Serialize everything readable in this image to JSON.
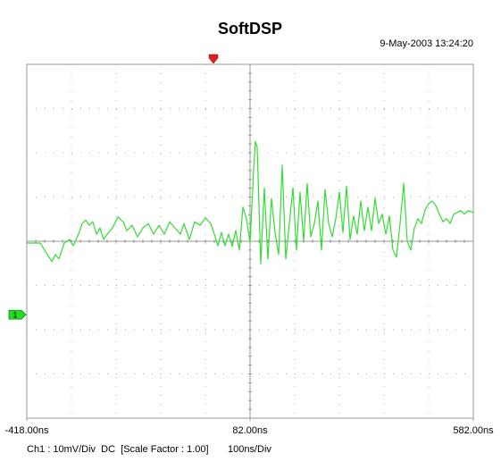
{
  "chart_data": {
    "type": "line",
    "title": "SoftDSP",
    "timestamp": "9-May-2003 13:24:20",
    "channel_info": "Ch1 : 10mV/Div  DC  [Scale Factor : 1.00]",
    "timebase": "100ns/Div",
    "color": "#33dd33",
    "xlim": [
      -418,
      582
    ],
    "ylim": [
      -40,
      40
    ],
    "x_divisions": 10,
    "y_divisions": 8,
    "grid": true,
    "xticks": [
      {
        "value": -418,
        "label": "-418.00ns"
      },
      {
        "value": 82,
        "label": "82.00ns"
      },
      {
        "value": 582,
        "label": "582.00ns"
      }
    ],
    "ground_marker": {
      "label": "1",
      "value": -16.6
    },
    "trigger_position": 0,
    "x": [
      -418,
      -388,
      -378,
      -362,
      -354,
      -346,
      -334,
      -322,
      -314,
      -302,
      -294,
      -286,
      -278,
      -270,
      -262,
      -254,
      -246,
      -238,
      -226,
      -214,
      -202,
      -194,
      -182,
      -170,
      -158,
      -146,
      -134,
      -122,
      -110,
      -98,
      -86,
      -74,
      -66,
      -54,
      -42,
      -30,
      -18,
      -6,
      2,
      10,
      18,
      26,
      34,
      42,
      50,
      58,
      66,
      74,
      82,
      90,
      94,
      98,
      102,
      106,
      114,
      122,
      130,
      138,
      146,
      154,
      162,
      170,
      178,
      186,
      194,
      202,
      210,
      218,
      226,
      234,
      242,
      250,
      258,
      266,
      274,
      282,
      290,
      298,
      306,
      314,
      322,
      330,
      338,
      346,
      354,
      362,
      370,
      378,
      386,
      394,
      402,
      410,
      418,
      426,
      434,
      442,
      450,
      458,
      466,
      474,
      482,
      490,
      498,
      506,
      514,
      522,
      530,
      538,
      546,
      554,
      562,
      570,
      582
    ],
    "values": [
      -0.4,
      -0.4,
      -2.0,
      -4.6,
      -3.0,
      -4.0,
      -0.4,
      0.4,
      -1.0,
      1.6,
      4.0,
      4.8,
      3.6,
      4.4,
      1.6,
      3.0,
      0.4,
      1.6,
      3.0,
      5.5,
      4.4,
      2.4,
      3.6,
      1.0,
      3.0,
      4.0,
      1.6,
      3.6,
      1.6,
      4.4,
      3.0,
      1.6,
      4.0,
      0.4,
      4.4,
      3.6,
      5.3,
      4.0,
      1.6,
      -1.0,
      2.0,
      -1.0,
      1.6,
      -1.2,
      2.4,
      -2.0,
      7.7,
      5.1,
      -0.4,
      16.2,
      22.6,
      21.2,
      8.1,
      -5.1,
      12.1,
      -4.0,
      9.7,
      2.0,
      -3.0,
      17.2,
      -4.0,
      4.0,
      12.1,
      -2.0,
      11.1,
      0,
      13.1,
      1.0,
      4.0,
      9.1,
      -2.0,
      11.7,
      4.0,
      1.0,
      5.1,
      11.1,
      2.0,
      12.5,
      0.4,
      5.7,
      1.6,
      9.1,
      2.4,
      7.7,
      2.4,
      9.7,
      4.0,
      6.1,
      1.6,
      5.7,
      -2.0,
      -3.6,
      4.0,
      13.1,
      0,
      -2.0,
      3.0,
      5.1,
      4.0,
      7.1,
      8.5,
      9.1,
      8.1,
      6.1,
      4.4,
      5.1,
      4.0,
      6.1,
      6.5,
      6.9,
      6.1,
      6.9,
      6.5
    ]
  }
}
